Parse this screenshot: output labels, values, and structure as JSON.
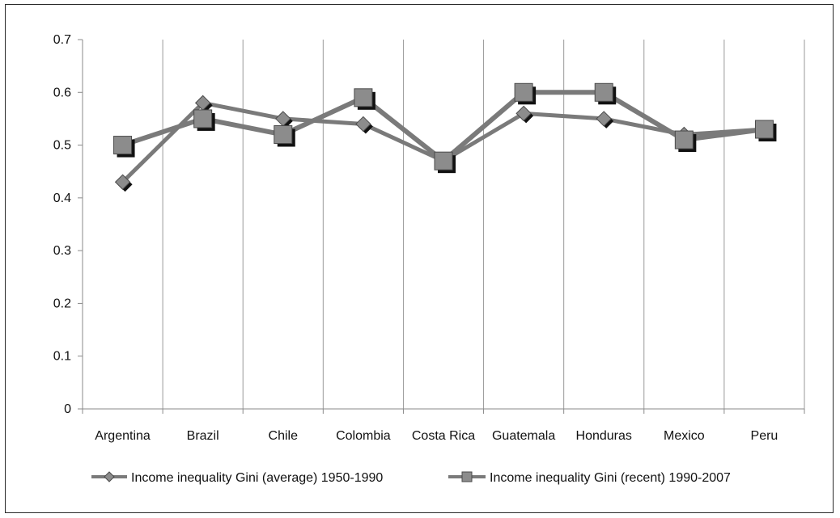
{
  "chart_data": {
    "type": "line",
    "title": "",
    "xlabel": "",
    "ylabel": "",
    "categories": [
      "Argentina",
      "Brazil",
      "Chile",
      "Colombia",
      "Costa Rica",
      "Guatemala",
      "Honduras",
      "Mexico",
      "Peru"
    ],
    "ylim": [
      0,
      0.7
    ],
    "yticks": [
      "0",
      "0.1",
      "0.2",
      "0.3",
      "0.4",
      "0.5",
      "0.6",
      "0.7"
    ],
    "grid": "vertical",
    "legend_position": "bottom",
    "series": [
      {
        "name": "Income inequality Gini (average) 1950-1990",
        "marker": "diamond",
        "color": "#7a7a7a",
        "values": [
          0.43,
          0.58,
          0.55,
          0.54,
          0.47,
          0.56,
          0.55,
          0.52,
          0.53
        ]
      },
      {
        "name": "Income inequality Gini (recent) 1990-2007",
        "marker": "square",
        "color": "#7a7a7a",
        "values": [
          0.5,
          0.55,
          0.52,
          0.59,
          0.47,
          0.6,
          0.6,
          0.51,
          0.53
        ]
      }
    ]
  }
}
